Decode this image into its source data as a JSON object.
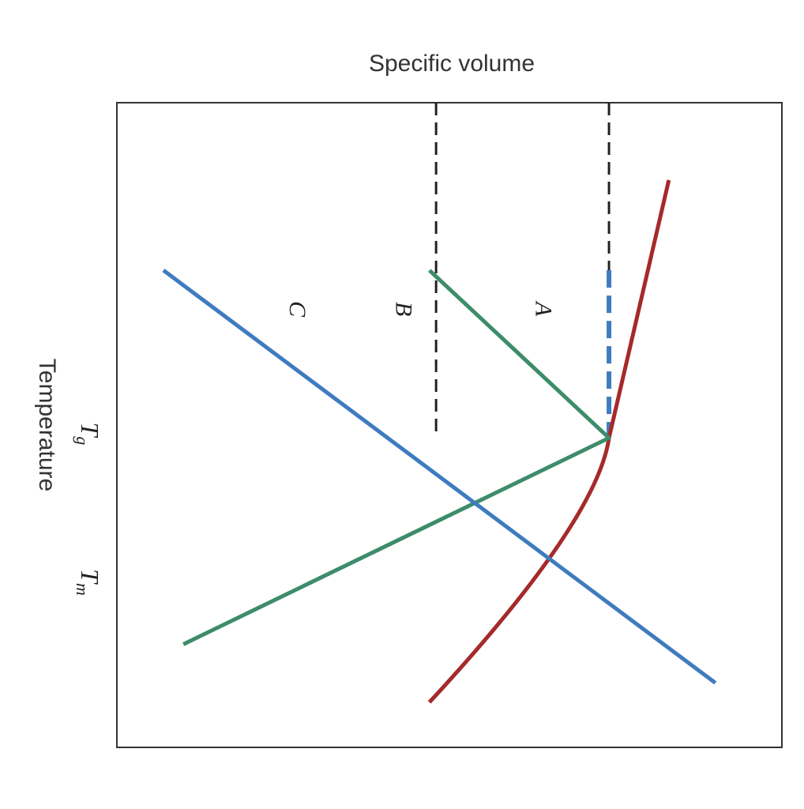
{
  "chart_data": {
    "type": "line",
    "xlabel": "Specific volume",
    "ylabel": "Temperature",
    "axis_orientation": "chart rotated 90° clockwise: temperature increases toward the left edge, specific volume increases toward the bottom edge",
    "xlim": [
      0,
      10
    ],
    "ylim": [
      0,
      10
    ],
    "ticks": [
      {
        "id": "tg",
        "main": "T",
        "sub": "g",
        "y": 5.2
      },
      {
        "id": "tm",
        "main": "T",
        "sub": "m",
        "y": 2.6
      }
    ],
    "series": [
      {
        "name": "A",
        "color": "#a52a2a",
        "points": [
          [
            1.2,
            1.7
          ],
          [
            5.2,
            2.6
          ],
          [
            9.3,
            5.3
          ]
        ],
        "label_at": [
          3.2,
          3.7
        ],
        "style": "solid"
      },
      {
        "name": "B",
        "color": "#3d8c6a",
        "points": [
          [
            2.6,
            5.3
          ],
          [
            5.2,
            2.6
          ],
          [
            8.4,
            9.0
          ]
        ],
        "label_at": [
          3.2,
          5.8
        ],
        "style": "solid"
      },
      {
        "name": "C",
        "color": "#3f7bbf",
        "points": [
          [
            2.6,
            9.3
          ],
          [
            9.0,
            1.0
          ]
        ],
        "label_at": [
          3.2,
          7.4
        ],
        "style": "solid"
      }
    ],
    "reference_lines": [
      {
        "id": "tg-line",
        "y": 5.2,
        "from_x": 0,
        "to_x": 5.2,
        "color": "#222222",
        "style": "dashed"
      },
      {
        "id": "tm-line",
        "y": 2.6,
        "from_x": 0,
        "to_x": 2.6,
        "color": "#222222",
        "style": "dashed"
      },
      {
        "id": "melt-jump",
        "y": 2.6,
        "from_x": 2.6,
        "to_x": 5.2,
        "color": "#3f7bbf",
        "style": "dashed"
      }
    ],
    "grid": false,
    "legend": "none"
  }
}
